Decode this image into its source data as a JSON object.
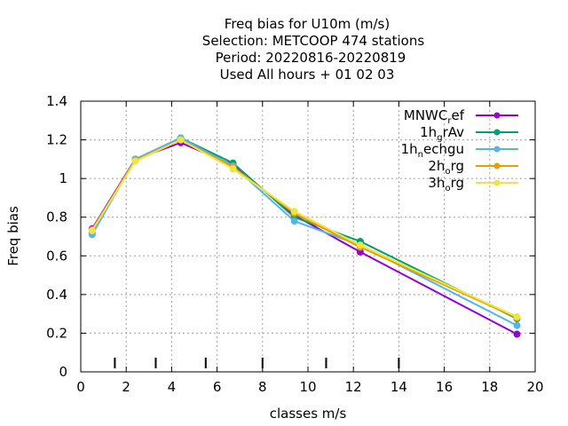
{
  "chart_data": {
    "type": "line",
    "title_lines": [
      "Freq bias  for U10m (m/s)",
      "Selection: METCOOP    474 stations",
      "Period: 20220816-20220819",
      "Used  All hours + 01 02 03"
    ],
    "xlabel": "classes m/s",
    "ylabel": "Freq bias",
    "xlim": [
      0,
      20
    ],
    "ylim": [
      0,
      1.4
    ],
    "x_ticks": [
      "0",
      "2",
      "4",
      "6",
      "8",
      "10",
      "12",
      "14",
      "16",
      "18",
      "20"
    ],
    "y_ticks": [
      "0",
      "0.2",
      "0.4",
      "0.6",
      "0.8",
      "1",
      "1.2",
      "1.4"
    ],
    "grid": true,
    "legend_position": "top-right",
    "class_marks_x": [
      1.5,
      3.3,
      5.5,
      8.0,
      10.8,
      14.0
    ],
    "series": [
      {
        "name": "MNWC",
        "name_sub": "r",
        "name_tail": "ef",
        "color": "#9400d3",
        "x": [
          0.5,
          2.4,
          4.4,
          6.7,
          9.4,
          12.3,
          19.2
        ],
        "y": [
          0.74,
          1.1,
          1.185,
          1.07,
          0.81,
          0.62,
          0.195
        ]
      },
      {
        "name": "1h",
        "name_sub": "g",
        "name_tail": "rAv",
        "color": "#009e73",
        "x": [
          0.5,
          2.4,
          4.4,
          6.7,
          9.4,
          12.3,
          19.2
        ],
        "y": [
          0.72,
          1.1,
          1.21,
          1.08,
          0.8,
          0.675,
          0.275
        ]
      },
      {
        "name": "1h",
        "name_sub": "n",
        "name_tail": "echgu",
        "color": "#56b4e9",
        "x": [
          0.5,
          2.4,
          4.4,
          6.7,
          9.4,
          12.3,
          19.2
        ],
        "y": [
          0.71,
          1.1,
          1.21,
          1.065,
          0.78,
          0.655,
          0.24
        ]
      },
      {
        "name": "2h",
        "name_sub": "o",
        "name_tail": "rg",
        "color": "#e69f00",
        "x": [
          0.5,
          2.4,
          4.4,
          6.7,
          9.4,
          12.3,
          19.2
        ],
        "y": [
          0.735,
          1.095,
          1.2,
          1.06,
          0.82,
          0.645,
          0.28
        ]
      },
      {
        "name": "3h",
        "name_sub": "o",
        "name_tail": "rg",
        "color": "#f0e442",
        "x": [
          0.5,
          2.4,
          4.4,
          6.7,
          9.4,
          12.3,
          19.2
        ],
        "y": [
          0.73,
          1.09,
          1.2,
          1.05,
          0.83,
          0.655,
          0.285
        ]
      }
    ]
  }
}
